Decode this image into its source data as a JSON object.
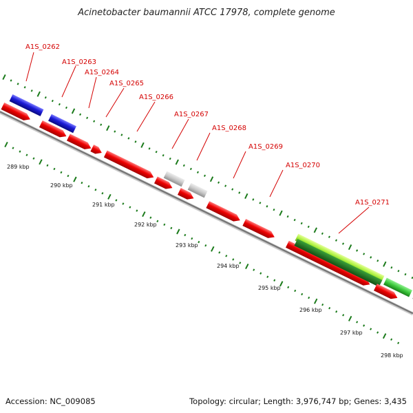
{
  "title": "Acinetobacter baumannii ATCC 17978, complete genome",
  "footer": {
    "accession": "Accession: NC_009085",
    "summary": "Topology: circular; Length: 3,976,747 bp; Genes: 3,435"
  },
  "colors": {
    "forward_gene": "#e60000",
    "reverse_gene": "#1a1ad6",
    "other_gene": "#c8c8c8",
    "rna_feature": "#aaf03c",
    "rna_feature_inner": "#227a22",
    "misc_feature": "#3cc83c",
    "label": "#d40000",
    "ticks": "#1a7a1a",
    "backbone": "#777777"
  },
  "loci": [
    "A1S_0262",
    "A1S_0263",
    "A1S_0264",
    "A1S_0265",
    "A1S_0266",
    "A1S_0267",
    "A1S_0268",
    "A1S_0269",
    "A1S_0270",
    "A1S_0271"
  ],
  "scale_labels": [
    "289 kbp",
    "290 kbp",
    "291 kbp",
    "292 kbp",
    "293 kbp",
    "294 kbp",
    "295 kbp",
    "296 kbp",
    "297 kbp",
    "298 kbp"
  ]
}
